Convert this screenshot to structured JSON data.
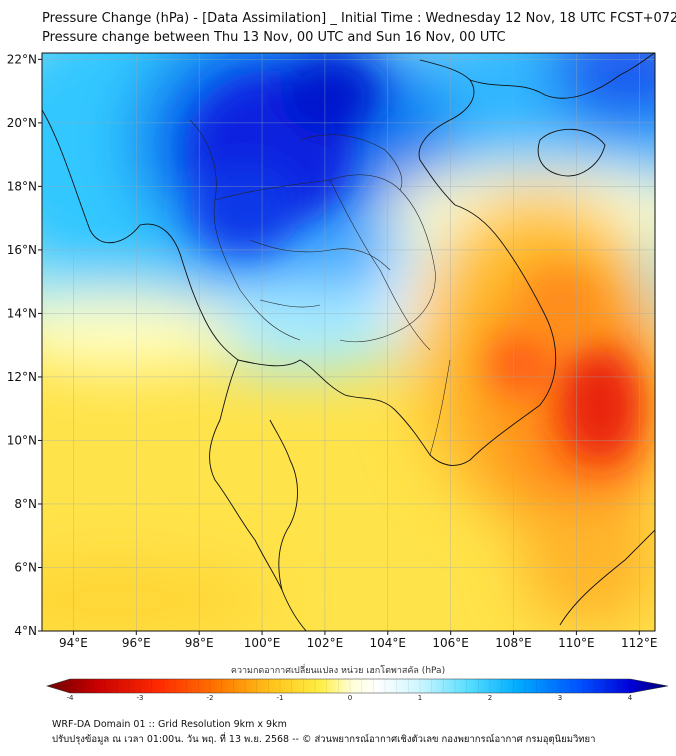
{
  "titles": {
    "line1": "Pressure Change (hPa) - [Data Assimilation] _ Initial Time : Wednesday 12 Nov, 18 UTC FCST+072",
    "line2": "Pressure change between Thu 13 Nov, 00 UTC and Sun 16 Nov, 00 UTC"
  },
  "axes": {
    "x_ticks": [
      "94°E",
      "96°E",
      "98°E",
      "100°E",
      "102°E",
      "104°E",
      "106°E",
      "108°E",
      "110°E",
      "112°E"
    ],
    "x_values": [
      94,
      96,
      98,
      100,
      102,
      104,
      106,
      108,
      110,
      112
    ],
    "y_ticks": [
      "4°N",
      "6°N",
      "8°N",
      "10°N",
      "12°N",
      "14°N",
      "16°N",
      "18°N",
      "20°N",
      "22°N"
    ],
    "y_values": [
      4,
      6,
      8,
      10,
      12,
      14,
      16,
      18,
      20,
      22
    ],
    "lon_range": [
      93,
      112.5
    ],
    "lat_range": [
      4,
      22.2
    ],
    "grid": true
  },
  "colorbar": {
    "title": "ความกดอากาศเปลี่ยนแปลง หน่วย เฮกโตพาสคัล (hPa)",
    "ticks": [
      "-4",
      "-3",
      "-2",
      "-1",
      "0",
      "1",
      "2",
      "3",
      "4"
    ],
    "tick_values": [
      -4,
      -3,
      -2,
      -1,
      0,
      1,
      2,
      3,
      4
    ],
    "colors": [
      "#6b0000",
      "#c80000",
      "#ff2a00",
      "#ff7a00",
      "#ffc21a",
      "#ffee44",
      "#ffffcc",
      "#ffffff",
      "#cdf6ff",
      "#55ddff",
      "#00aaff",
      "#0050ff",
      "#0000d8",
      "#000070"
    ]
  },
  "field": {
    "description_colors": {
      "strong_fall": "#e83a10",
      "moderate_fall": "#ff9a1a",
      "weak_fall": "#ffe84a",
      "neutral": "#ffffc8",
      "weak_rise": "#bff3ff",
      "moderate_rise": "#22c8ff",
      "strong_rise": "#0a1ee0"
    }
  },
  "footer": {
    "line1": "WRF-DA Domain 01 :: Grid Resolution 9km x 9km",
    "line2": "ปรับปรุงข้อมูล ณ เวลา 01:00น. วัน พฤ. ที่ 13 พ.ย. 2568 -- © ส่วนพยากรณ์อากาศเชิงตัวเลข กองพยากรณ์อากาศ กรมอุตุนิยมวิทยา"
  }
}
